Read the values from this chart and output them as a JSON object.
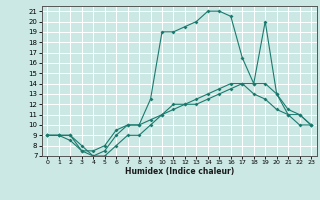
{
  "xlabel": "Humidex (Indice chaleur)",
  "bg_color": "#cce8e4",
  "grid_color": "#ffffff",
  "line_color": "#1a7a6e",
  "xlim": [
    -0.5,
    23.5
  ],
  "ylim": [
    7,
    21.5
  ],
  "xticks": [
    0,
    1,
    2,
    3,
    4,
    5,
    6,
    7,
    8,
    9,
    10,
    11,
    12,
    13,
    14,
    15,
    16,
    17,
    18,
    19,
    20,
    21,
    22,
    23
  ],
  "yticks": [
    7,
    8,
    9,
    10,
    11,
    12,
    13,
    14,
    15,
    16,
    17,
    18,
    19,
    20,
    21
  ],
  "line1_x": [
    0,
    1,
    2,
    3,
    4,
    5,
    6,
    7,
    8,
    9,
    10,
    11,
    12,
    13,
    14,
    15,
    16,
    17,
    18,
    19,
    20,
    21,
    22,
    23
  ],
  "line1_y": [
    9,
    9,
    8.5,
    7.5,
    7,
    7,
    8,
    9,
    9,
    10,
    11,
    12,
    12,
    12.5,
    13,
    13.5,
    14,
    14,
    13,
    12.5,
    11.5,
    11,
    10,
    10
  ],
  "line2_x": [
    0,
    1,
    2,
    3,
    4,
    5,
    6,
    7,
    8,
    9,
    10,
    11,
    12,
    13,
    14,
    15,
    16,
    17,
    18,
    19,
    20,
    21,
    22,
    23
  ],
  "line2_y": [
    9,
    9,
    9,
    7.5,
    7.5,
    8,
    9.5,
    10,
    10,
    10.5,
    11,
    11.5,
    12,
    12,
    12.5,
    13,
    13.5,
    14,
    14,
    14,
    13,
    11.5,
    11,
    10
  ],
  "line3_x": [
    0,
    1,
    2,
    3,
    4,
    5,
    6,
    7,
    8,
    9,
    10,
    11,
    12,
    13,
    14,
    15,
    16,
    17,
    18,
    19,
    20,
    21,
    22,
    23
  ],
  "line3_y": [
    9,
    9,
    9,
    8,
    7,
    7.5,
    9,
    10,
    10,
    12.5,
    19,
    19,
    19.5,
    20,
    21,
    21,
    20.5,
    16.5,
    14,
    20,
    13,
    11,
    11,
    10
  ]
}
